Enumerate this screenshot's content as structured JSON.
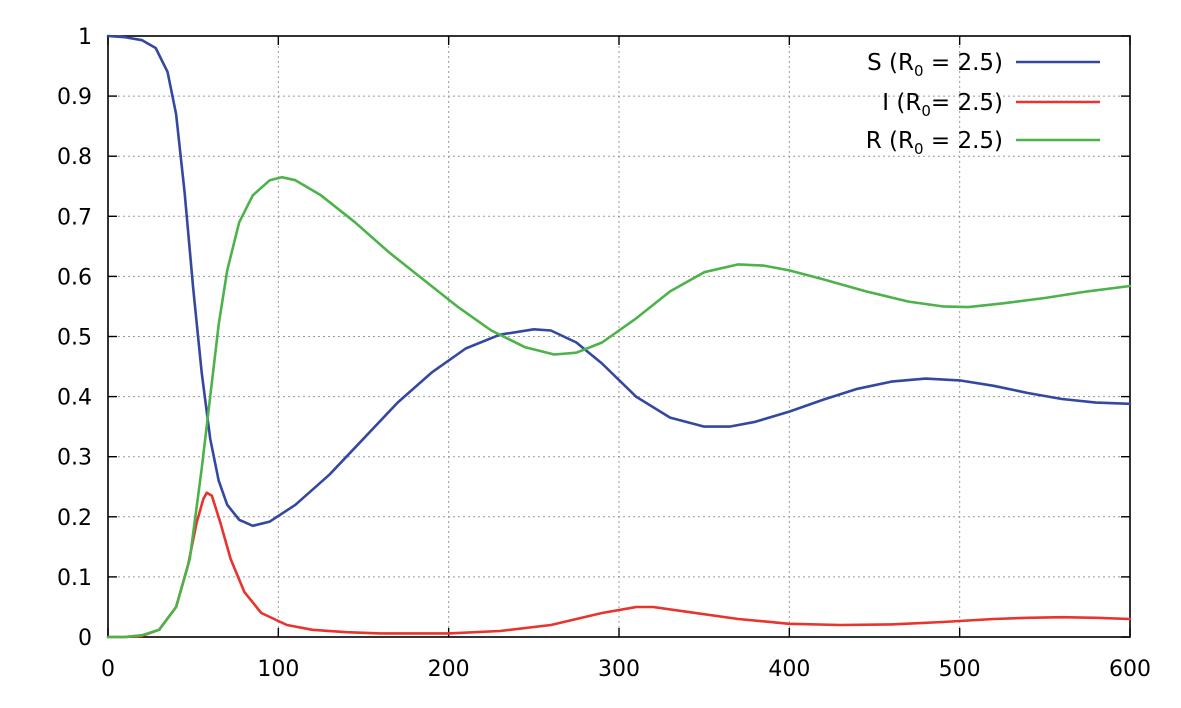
{
  "chart_data": {
    "type": "line",
    "title": "",
    "xlabel": "",
    "ylabel": "",
    "xlim": [
      0,
      600
    ],
    "ylim": [
      0,
      1
    ],
    "grid": true,
    "legend_position": "top-right",
    "x_ticks": [
      "0",
      "100",
      "200",
      "300",
      "400",
      "500",
      "600"
    ],
    "y_ticks": [
      "0",
      "0.1",
      "0.2",
      "0.3",
      "0.4",
      "0.5",
      "0.6",
      "0.7",
      "0.8",
      "0.9",
      "1"
    ],
    "series": [
      {
        "name": "S (R0 = 2.5)",
        "legend_prefix": "S (R",
        "legend_sub": "0",
        "legend_suffix": " = 2.5)",
        "color": "#3448a0",
        "points": [
          [
            0,
            1.0
          ],
          [
            10,
            0.998
          ],
          [
            20,
            0.993
          ],
          [
            28,
            0.98
          ],
          [
            35,
            0.94
          ],
          [
            40,
            0.87
          ],
          [
            45,
            0.74
          ],
          [
            50,
            0.58
          ],
          [
            55,
            0.44
          ],
          [
            60,
            0.33
          ],
          [
            65,
            0.26
          ],
          [
            70,
            0.22
          ],
          [
            77,
            0.195
          ],
          [
            85,
            0.185
          ],
          [
            95,
            0.192
          ],
          [
            110,
            0.22
          ],
          [
            130,
            0.27
          ],
          [
            150,
            0.33
          ],
          [
            170,
            0.39
          ],
          [
            190,
            0.44
          ],
          [
            210,
            0.48
          ],
          [
            230,
            0.503
          ],
          [
            250,
            0.512
          ],
          [
            260,
            0.51
          ],
          [
            275,
            0.49
          ],
          [
            290,
            0.455
          ],
          [
            310,
            0.4
          ],
          [
            330,
            0.365
          ],
          [
            350,
            0.35
          ],
          [
            365,
            0.35
          ],
          [
            380,
            0.358
          ],
          [
            400,
            0.375
          ],
          [
            420,
            0.395
          ],
          [
            440,
            0.413
          ],
          [
            460,
            0.425
          ],
          [
            480,
            0.43
          ],
          [
            500,
            0.427
          ],
          [
            520,
            0.418
          ],
          [
            540,
            0.406
          ],
          [
            560,
            0.396
          ],
          [
            580,
            0.39
          ],
          [
            600,
            0.388
          ]
        ]
      },
      {
        "name": "I (R0= 2.5)",
        "legend_prefix": "I (R",
        "legend_sub": "0",
        "legend_suffix": "= 2.5)",
        "color": "#e8332e",
        "points": [
          [
            0,
            0.0
          ],
          [
            10,
            0.0
          ],
          [
            20,
            0.002
          ],
          [
            30,
            0.012
          ],
          [
            40,
            0.05
          ],
          [
            47,
            0.12
          ],
          [
            52,
            0.19
          ],
          [
            56,
            0.23
          ],
          [
            58,
            0.24
          ],
          [
            61,
            0.235
          ],
          [
            66,
            0.19
          ],
          [
            72,
            0.13
          ],
          [
            80,
            0.075
          ],
          [
            90,
            0.04
          ],
          [
            105,
            0.02
          ],
          [
            120,
            0.012
          ],
          [
            140,
            0.008
          ],
          [
            160,
            0.006
          ],
          [
            200,
            0.006
          ],
          [
            230,
            0.01
          ],
          [
            260,
            0.02
          ],
          [
            290,
            0.04
          ],
          [
            310,
            0.05
          ],
          [
            320,
            0.05
          ],
          [
            340,
            0.042
          ],
          [
            370,
            0.03
          ],
          [
            400,
            0.022
          ],
          [
            430,
            0.02
          ],
          [
            460,
            0.021
          ],
          [
            490,
            0.025
          ],
          [
            520,
            0.03
          ],
          [
            540,
            0.032
          ],
          [
            560,
            0.033
          ],
          [
            580,
            0.032
          ],
          [
            600,
            0.03
          ]
        ]
      },
      {
        "name": "R (R0 = 2.5)",
        "legend_prefix": "R (R",
        "legend_sub": "0",
        "legend_suffix": " = 2.5)",
        "color": "#4cb34a",
        "points": [
          [
            0,
            0.0
          ],
          [
            10,
            0.0
          ],
          [
            20,
            0.003
          ],
          [
            30,
            0.012
          ],
          [
            40,
            0.05
          ],
          [
            48,
            0.13
          ],
          [
            55,
            0.28
          ],
          [
            60,
            0.4
          ],
          [
            65,
            0.52
          ],
          [
            70,
            0.61
          ],
          [
            77,
            0.69
          ],
          [
            85,
            0.735
          ],
          [
            95,
            0.76
          ],
          [
            102,
            0.765
          ],
          [
            110,
            0.76
          ],
          [
            125,
            0.735
          ],
          [
            145,
            0.69
          ],
          [
            165,
            0.64
          ],
          [
            185,
            0.595
          ],
          [
            205,
            0.55
          ],
          [
            225,
            0.51
          ],
          [
            245,
            0.482
          ],
          [
            262,
            0.47
          ],
          [
            275,
            0.473
          ],
          [
            290,
            0.49
          ],
          [
            310,
            0.53
          ],
          [
            330,
            0.575
          ],
          [
            350,
            0.607
          ],
          [
            370,
            0.62
          ],
          [
            385,
            0.618
          ],
          [
            400,
            0.61
          ],
          [
            420,
            0.595
          ],
          [
            445,
            0.575
          ],
          [
            470,
            0.558
          ],
          [
            490,
            0.55
          ],
          [
            505,
            0.549
          ],
          [
            525,
            0.555
          ],
          [
            550,
            0.564
          ],
          [
            575,
            0.575
          ],
          [
            600,
            0.584
          ]
        ]
      }
    ]
  }
}
